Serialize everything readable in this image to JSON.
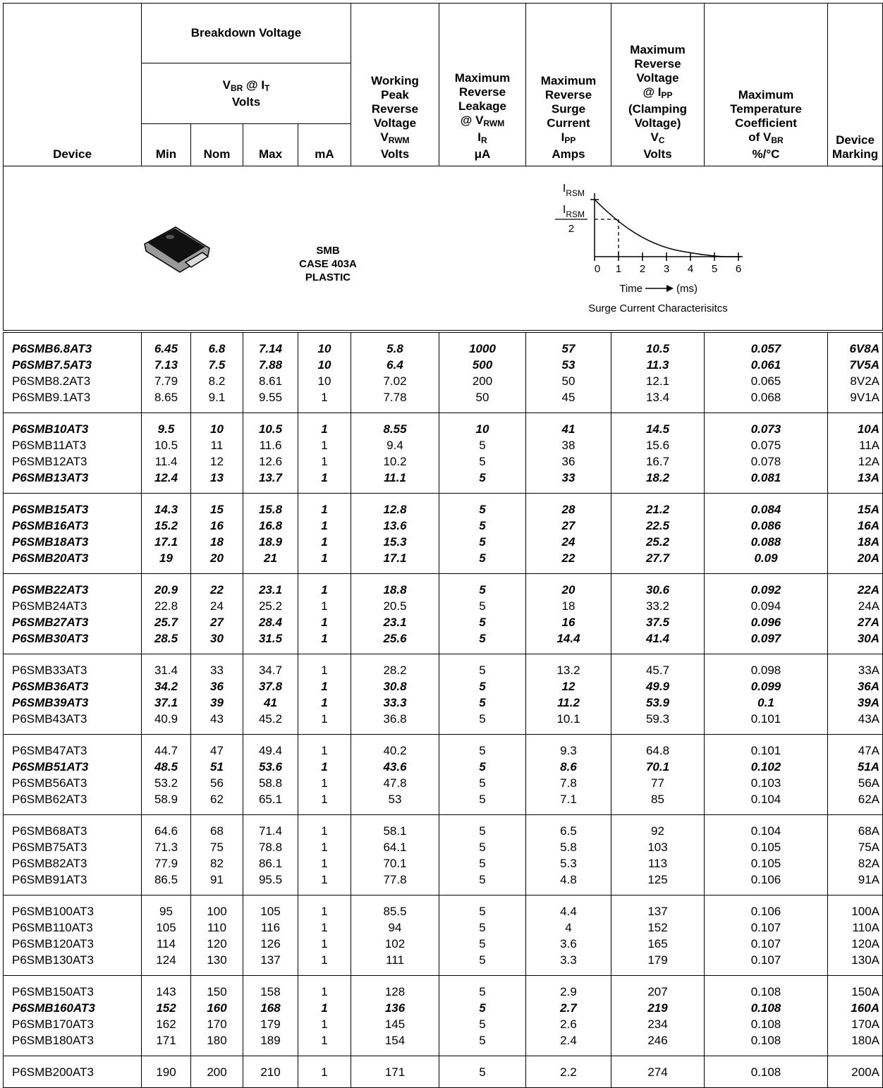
{
  "header": {
    "device": [
      [
        "Device"
      ]
    ],
    "breakdown": {
      "title": "Breakdown Voltage",
      "lines": [
        [
          "V",
          {
            "sub": "BR"
          },
          " @ I",
          {
            "sub": "T"
          }
        ],
        [
          "Volts"
        ]
      ],
      "columns": [
        "Min",
        "Nom",
        "Max",
        "mA"
      ]
    },
    "columns": [
      [
        [
          "Working"
        ],
        [
          "Peak"
        ],
        [
          "Reverse"
        ],
        [
          "Voltage"
        ],
        [
          "V",
          {
            "sub": "RWM"
          }
        ],
        [
          "Volts"
        ]
      ],
      [
        [
          "Maximum"
        ],
        [
          "Reverse"
        ],
        [
          "Leakage"
        ],
        [
          "@ V",
          {
            "sub": "RWM"
          }
        ],
        [
          "I",
          {
            "sub": "R"
          }
        ],
        [
          "μA"
        ]
      ],
      [
        [
          "Maximum"
        ],
        [
          "Reverse"
        ],
        [
          "Surge"
        ],
        [
          "Current"
        ],
        [
          "I",
          {
            "sub": "PP"
          }
        ],
        [
          "Amps"
        ]
      ],
      [
        [
          "Maximum"
        ],
        [
          "Reverse"
        ],
        [
          "Voltage"
        ],
        [
          "@ I",
          {
            "sub": "PP"
          }
        ],
        [
          "(Clamping"
        ],
        [
          "Voltage)"
        ],
        [
          "V",
          {
            "sub": "C"
          }
        ],
        [
          "Volts"
        ]
      ],
      [
        [
          "Maximum"
        ],
        [
          "Temperature"
        ],
        [
          "Coefficient"
        ],
        [
          "of V",
          {
            "sub": "BR"
          }
        ],
        [
          "%/°C"
        ]
      ]
    ],
    "marking": [
      [
        "Device"
      ],
      [
        "Marking"
      ]
    ]
  },
  "package": {
    "lines": [
      "SMB",
      "CASE 403A",
      "PLASTIC"
    ]
  },
  "graph": {
    "peak_label": [
      "I",
      {
        "sub": "RSM"
      }
    ],
    "half_label": {
      "numerator": [
        "I",
        {
          "sub": "RSM"
        }
      ],
      "denominator": "2"
    },
    "xticks": [
      "0",
      "1",
      "2",
      "3",
      "4",
      "5",
      "6"
    ],
    "xlabel": "Time",
    "xunit": "(ms)",
    "caption": "Surge Current  Characterisitcs"
  },
  "groups": [
    [
      {
        "cells": [
          "P6SMB6.8AT3",
          "6.45",
          "6.8",
          "7.14",
          "10",
          "5.8",
          "1000",
          "57",
          "10.5",
          "0.057",
          "6V8A"
        ],
        "bold": true
      },
      {
        "cells": [
          "P6SMB7.5AT3",
          "7.13",
          "7.5",
          "7.88",
          "10",
          "6.4",
          "500",
          "53",
          "11.3",
          "0.061",
          "7V5A"
        ],
        "bold": true
      },
      {
        "cells": [
          "P6SMB8.2AT3",
          "7.79",
          "8.2",
          "8.61",
          "10",
          "7.02",
          "200",
          "50",
          "12.1",
          "0.065",
          "8V2A"
        ],
        "bold": false
      },
      {
        "cells": [
          "P6SMB9.1AT3",
          "8.65",
          "9.1",
          "9.55",
          "1",
          "7.78",
          "50",
          "45",
          "13.4",
          "0.068",
          "9V1A"
        ],
        "bold": false
      }
    ],
    [
      {
        "cells": [
          "P6SMB10AT3",
          "9.5",
          "10",
          "10.5",
          "1",
          "8.55",
          "10",
          "41",
          "14.5",
          "0.073",
          "10A"
        ],
        "bold": true
      },
      {
        "cells": [
          "P6SMB11AT3",
          "10.5",
          "11",
          "11.6",
          "1",
          "9.4",
          "5",
          "38",
          "15.6",
          "0.075",
          "11A"
        ],
        "bold": false
      },
      {
        "cells": [
          "P6SMB12AT3",
          "11.4",
          "12",
          "12.6",
          "1",
          "10.2",
          "5",
          "36",
          "16.7",
          "0.078",
          "12A"
        ],
        "bold": false
      },
      {
        "cells": [
          "P6SMB13AT3",
          "12.4",
          "13",
          "13.7",
          "1",
          "11.1",
          "5",
          "33",
          "18.2",
          "0.081",
          "13A"
        ],
        "bold": true
      }
    ],
    [
      {
        "cells": [
          "P6SMB15AT3",
          "14.3",
          "15",
          "15.8",
          "1",
          "12.8",
          "5",
          "28",
          "21.2",
          "0.084",
          "15A"
        ],
        "bold": true
      },
      {
        "cells": [
          "P6SMB16AT3",
          "15.2",
          "16",
          "16.8",
          "1",
          "13.6",
          "5",
          "27",
          "22.5",
          "0.086",
          "16A"
        ],
        "bold": true
      },
      {
        "cells": [
          "P6SMB18AT3",
          "17.1",
          "18",
          "18.9",
          "1",
          "15.3",
          "5",
          "24",
          "25.2",
          "0.088",
          "18A"
        ],
        "bold": true
      },
      {
        "cells": [
          "P6SMB20AT3",
          "19",
          "20",
          "21",
          "1",
          "17.1",
          "5",
          "22",
          "27.7",
          "0.09",
          "20A"
        ],
        "bold": true
      }
    ],
    [
      {
        "cells": [
          "P6SMB22AT3",
          "20.9",
          "22",
          "23.1",
          "1",
          "18.8",
          "5",
          "20",
          "30.6",
          "0.092",
          "22A"
        ],
        "bold": true
      },
      {
        "cells": [
          "P6SMB24AT3",
          "22.8",
          "24",
          "25.2",
          "1",
          "20.5",
          "5",
          "18",
          "33.2",
          "0.094",
          "24A"
        ],
        "bold": false
      },
      {
        "cells": [
          "P6SMB27AT3",
          "25.7",
          "27",
          "28.4",
          "1",
          "23.1",
          "5",
          "16",
          "37.5",
          "0.096",
          "27A"
        ],
        "bold": true
      },
      {
        "cells": [
          "P6SMB30AT3",
          "28.5",
          "30",
          "31.5",
          "1",
          "25.6",
          "5",
          "14.4",
          "41.4",
          "0.097",
          "30A"
        ],
        "bold": true
      }
    ],
    [
      {
        "cells": [
          "P6SMB33AT3",
          "31.4",
          "33",
          "34.7",
          "1",
          "28.2",
          "5",
          "13.2",
          "45.7",
          "0.098",
          "33A"
        ],
        "bold": false
      },
      {
        "cells": [
          "P6SMB36AT3",
          "34.2",
          "36",
          "37.8",
          "1",
          "30.8",
          "5",
          "12",
          "49.9",
          "0.099",
          "36A"
        ],
        "bold": true
      },
      {
        "cells": [
          "P6SMB39AT3",
          "37.1",
          "39",
          "41",
          "1",
          "33.3",
          "5",
          "11.2",
          "53.9",
          "0.1",
          "39A"
        ],
        "bold": true
      },
      {
        "cells": [
          "P6SMB43AT3",
          "40.9",
          "43",
          "45.2",
          "1",
          "36.8",
          "5",
          "10.1",
          "59.3",
          "0.101",
          "43A"
        ],
        "bold": false
      }
    ],
    [
      {
        "cells": [
          "P6SMB47AT3",
          "44.7",
          "47",
          "49.4",
          "1",
          "40.2",
          "5",
          "9.3",
          "64.8",
          "0.101",
          "47A"
        ],
        "bold": false
      },
      {
        "cells": [
          "P6SMB51AT3",
          "48.5",
          "51",
          "53.6",
          "1",
          "43.6",
          "5",
          "8.6",
          "70.1",
          "0.102",
          "51A"
        ],
        "bold": true
      },
      {
        "cells": [
          "P6SMB56AT3",
          "53.2",
          "56",
          "58.8",
          "1",
          "47.8",
          "5",
          "7.8",
          "77",
          "0.103",
          "56A"
        ],
        "bold": false
      },
      {
        "cells": [
          "P6SMB62AT3",
          "58.9",
          "62",
          "65.1",
          "1",
          "53",
          "5",
          "7.1",
          "85",
          "0.104",
          "62A"
        ],
        "bold": false
      }
    ],
    [
      {
        "cells": [
          "P6SMB68AT3",
          "64.6",
          "68",
          "71.4",
          "1",
          "58.1",
          "5",
          "6.5",
          "92",
          "0.104",
          "68A"
        ],
        "bold": false
      },
      {
        "cells": [
          "P6SMB75AT3",
          "71.3",
          "75",
          "78.8",
          "1",
          "64.1",
          "5",
          "5.8",
          "103",
          "0.105",
          "75A"
        ],
        "bold": false
      },
      {
        "cells": [
          "P6SMB82AT3",
          "77.9",
          "82",
          "86.1",
          "1",
          "70.1",
          "5",
          "5.3",
          "113",
          "0.105",
          "82A"
        ],
        "bold": false
      },
      {
        "cells": [
          "P6SMB91AT3",
          "86.5",
          "91",
          "95.5",
          "1",
          "77.8",
          "5",
          "4.8",
          "125",
          "0.106",
          "91A"
        ],
        "bold": false
      }
    ],
    [
      {
        "cells": [
          "P6SMB100AT3",
          "95",
          "100",
          "105",
          "1",
          "85.5",
          "5",
          "4.4",
          "137",
          "0.106",
          "100A"
        ],
        "bold": false
      },
      {
        "cells": [
          "P6SMB110AT3",
          "105",
          "110",
          "116",
          "1",
          "94",
          "5",
          "4",
          "152",
          "0.107",
          "110A"
        ],
        "bold": false
      },
      {
        "cells": [
          "P6SMB120AT3",
          "114",
          "120",
          "126",
          "1",
          "102",
          "5",
          "3.6",
          "165",
          "0.107",
          "120A"
        ],
        "bold": false
      },
      {
        "cells": [
          "P6SMB130AT3",
          "124",
          "130",
          "137",
          "1",
          "111",
          "5",
          "3.3",
          "179",
          "0.107",
          "130A"
        ],
        "bold": false
      }
    ],
    [
      {
        "cells": [
          "P6SMB150AT3",
          "143",
          "150",
          "158",
          "1",
          "128",
          "5",
          "2.9",
          "207",
          "0.108",
          "150A"
        ],
        "bold": false
      },
      {
        "cells": [
          "P6SMB160AT3",
          "152",
          "160",
          "168",
          "1",
          "136",
          "5",
          "2.7",
          "219",
          "0.108",
          "160A"
        ],
        "bold": true
      },
      {
        "cells": [
          "P6SMB170AT3",
          "162",
          "170",
          "179",
          "1",
          "145",
          "5",
          "2.6",
          "234",
          "0.108",
          "170A"
        ],
        "bold": false
      },
      {
        "cells": [
          "P6SMB180AT3",
          "171",
          "180",
          "189",
          "1",
          "154",
          "5",
          "2.4",
          "246",
          "0.108",
          "180A"
        ],
        "bold": false
      }
    ],
    [
      {
        "cells": [
          "P6SMB200AT3",
          "190",
          "200",
          "210",
          "1",
          "171",
          "5",
          "2.2",
          "274",
          "0.108",
          "200A"
        ],
        "bold": false
      }
    ]
  ]
}
